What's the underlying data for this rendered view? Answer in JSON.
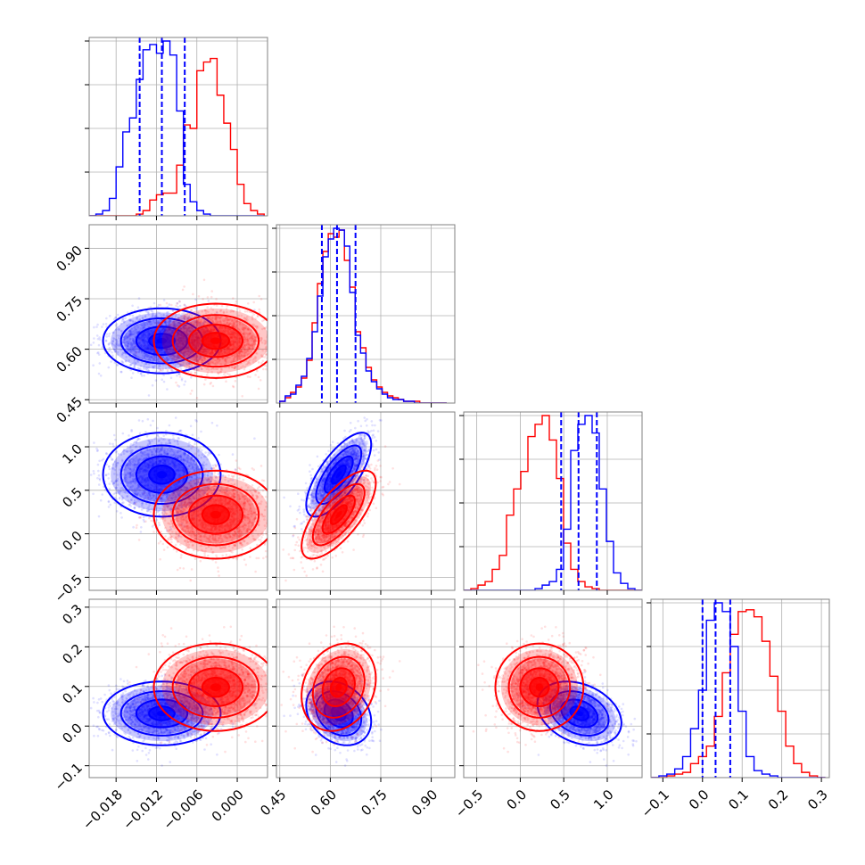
{
  "chart_data": {
    "type": "corner",
    "colors": {
      "blue": "#0000ff",
      "red": "#ff0000",
      "grid": "#b0b0b0",
      "axes": "#808080"
    },
    "grid": true,
    "series": [
      {
        "color": "#0000ff",
        "mean": [
          -0.0112,
          0.625,
          0.68,
          0.032
        ],
        "sd": [
          0.0038,
          0.042,
          0.21,
          0.035
        ],
        "correlations": {
          "1-2": 0.72,
          "1-3": -0.25,
          "2-3": -0.3
        }
      },
      {
        "color": "#ff0000",
        "mean": [
          -0.0032,
          0.625,
          0.22,
          0.098
        ],
        "sd": [
          0.004,
          0.048,
          0.22,
          0.048
        ],
        "correlations": {
          "1-2": 0.72,
          "1-3": 0.2,
          "2-3": 0.0
        }
      }
    ],
    "quantile_lines": [
      [
        -0.0145,
        -0.0112,
        -0.0078
      ],
      [
        0.575,
        0.62,
        0.675
      ],
      [
        0.47,
        0.67,
        0.88
      ],
      [
        0.0,
        0.033,
        0.07
      ]
    ],
    "axes": [
      {
        "range": [
          -0.022,
          0.0045
        ],
        "ticks": [
          -0.018,
          -0.012,
          -0.006,
          0.0
        ],
        "tick_labels": [
          "−0.018",
          "−0.012",
          "−0.006",
          "0.000"
        ]
      },
      {
        "range": [
          0.44,
          0.97
        ],
        "ticks": [
          0.45,
          0.6,
          0.75,
          0.9
        ],
        "tick_labels": [
          "0.45",
          "0.60",
          "0.75",
          "0.90"
        ]
      },
      {
        "range": [
          -0.65,
          1.4
        ],
        "ticks": [
          -0.5,
          0.0,
          0.5,
          1.0
        ],
        "tick_labels": [
          "−0.5",
          "0.0",
          "0.5",
          "1.0"
        ]
      },
      {
        "range": [
          -0.13,
          0.32
        ],
        "ticks": [
          -0.1,
          0.0,
          0.1,
          0.2,
          0.3
        ],
        "tick_labels": [
          "−0.1",
          "0.0",
          "0.1",
          "0.2",
          "0.3"
        ]
      }
    ],
    "histograms": [
      {
        "bin_edges": [
          -0.022,
          -0.021,
          -0.02,
          -0.019,
          -0.018,
          -0.017,
          -0.016,
          -0.015,
          -0.014,
          -0.013,
          -0.012,
          -0.011,
          -0.01,
          -0.009,
          -0.008,
          -0.007,
          -0.006,
          -0.005,
          -0.004,
          -0.003,
          -0.002,
          -0.001,
          0.0,
          0.001,
          0.002,
          0.003,
          0.004
        ],
        "counts_blue": [
          0,
          1,
          3,
          10,
          28,
          48,
          56,
          78,
          95,
          98,
          93,
          100,
          92,
          60,
          18,
          8,
          3,
          1,
          0,
          0,
          0,
          0,
          0,
          0,
          0,
          0
        ],
        "counts_red": [
          0,
          0,
          0,
          0,
          0,
          0,
          0,
          1,
          3,
          9,
          12,
          13,
          13,
          29,
          52,
          50,
          83,
          88,
          90,
          69,
          53,
          38,
          18,
          7,
          3,
          1
        ]
      },
      {
        "bin_edges": [
          0.45,
          0.466,
          0.482,
          0.498,
          0.514,
          0.53,
          0.546,
          0.562,
          0.578,
          0.594,
          0.61,
          0.626,
          0.642,
          0.658,
          0.674,
          0.69,
          0.706,
          0.722,
          0.738,
          0.754,
          0.77,
          0.786,
          0.802,
          0.818,
          0.834,
          0.85,
          0.866,
          0.882,
          0.898,
          0.914,
          0.93,
          0.946
        ],
        "counts_blue": [
          1,
          4,
          5,
          10,
          15,
          25,
          40,
          60,
          82,
          92,
          98,
          97,
          88,
          62,
          38,
          28,
          18,
          12,
          8,
          5,
          3,
          2,
          2,
          1,
          1,
          0,
          0,
          0,
          0,
          0,
          0
        ],
        "counts_red": [
          1,
          3,
          6,
          9,
          14,
          24,
          45,
          67,
          85,
          95,
          93,
          97,
          80,
          65,
          40,
          31,
          20,
          13,
          9,
          6,
          4,
          3,
          2,
          1,
          1,
          1,
          0,
          0,
          0,
          0,
          0
        ]
      },
      {
        "bin_edges": [
          -0.65,
          -0.568,
          -0.486,
          -0.404,
          -0.322,
          -0.24,
          -0.158,
          -0.076,
          0.006,
          0.088,
          0.17,
          0.252,
          0.334,
          0.416,
          0.498,
          0.58,
          0.662,
          0.744,
          0.826,
          0.908,
          0.99,
          1.072,
          1.154,
          1.236,
          1.318,
          1.4
        ],
        "counts_blue": [
          0,
          0,
          0,
          0,
          0,
          0,
          0,
          0,
          0,
          0,
          1,
          3,
          5,
          12,
          35,
          80,
          95,
          100,
          90,
          58,
          28,
          10,
          4,
          1,
          0
        ],
        "counts_red": [
          0,
          1,
          3,
          5,
          12,
          20,
          43,
          58,
          68,
          88,
          95,
          100,
          86,
          64,
          27,
          12,
          5,
          2,
          1,
          0,
          0,
          0,
          0,
          0,
          0
        ]
      },
      {
        "bin_edges": [
          -0.13,
          -0.11,
          -0.09,
          -0.07,
          -0.05,
          -0.03,
          -0.01,
          0.01,
          0.03,
          0.05,
          0.07,
          0.09,
          0.11,
          0.13,
          0.15,
          0.17,
          0.19,
          0.21,
          0.23,
          0.25,
          0.27,
          0.29,
          0.31
        ],
        "counts_blue": [
          0,
          1,
          2,
          5,
          12,
          28,
          50,
          90,
          100,
          95,
          75,
          38,
          12,
          4,
          2,
          1,
          0,
          0,
          0,
          0,
          0,
          0
        ],
        "counts_red": [
          0,
          0,
          1,
          2,
          3,
          8,
          12,
          18,
          35,
          60,
          82,
          95,
          96,
          92,
          78,
          58,
          38,
          18,
          8,
          3,
          1,
          0
        ]
      }
    ]
  }
}
